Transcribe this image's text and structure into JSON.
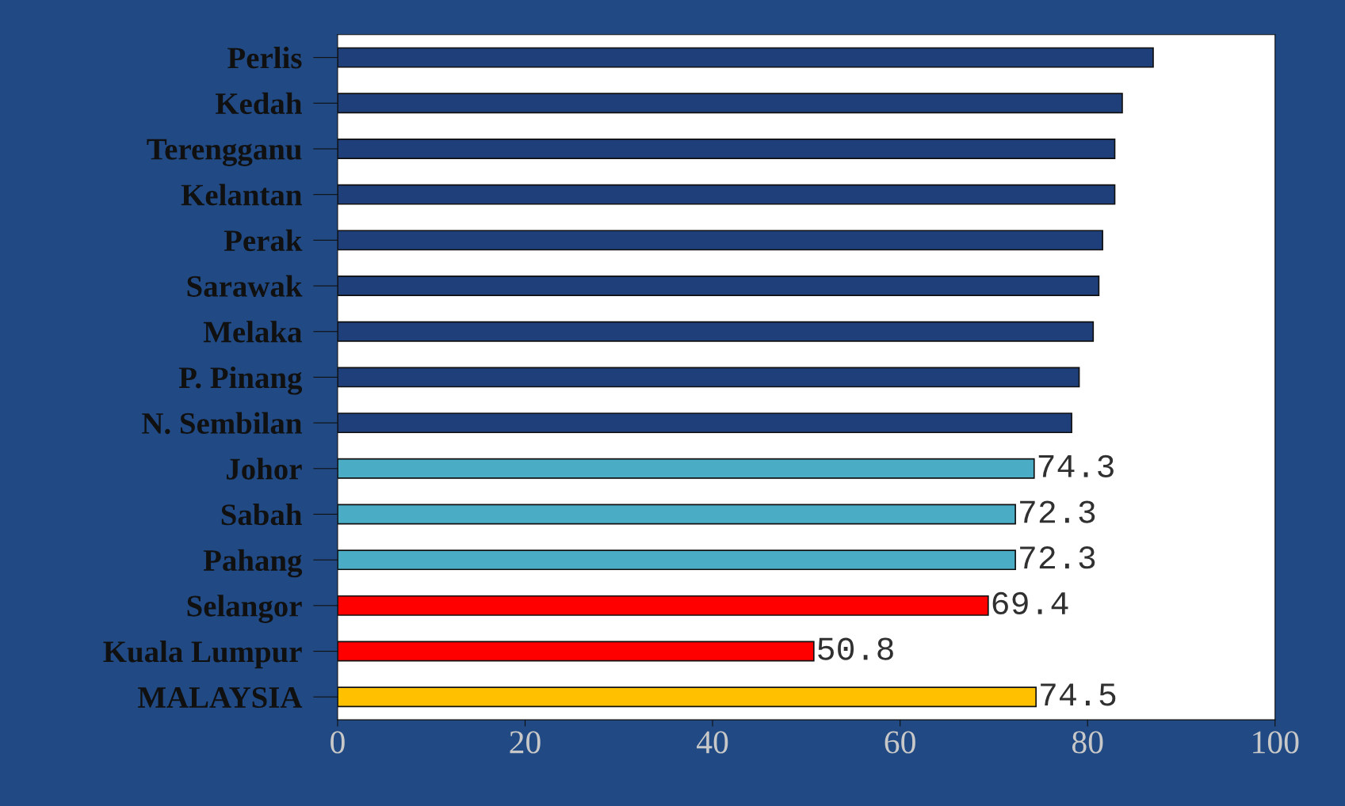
{
  "chart_data": {
    "type": "bar",
    "orientation": "horizontal",
    "categories": [
      "Perlis",
      "Kedah",
      "Terengganu",
      "Kelantan",
      "Perak",
      "Sarawak",
      "Melaka",
      "P. Pinang",
      "N. Sembilan",
      "Johor",
      "Sabah",
      "Pahang",
      "Selangor",
      "Kuala Lumpur",
      "MALAYSIA"
    ],
    "values": [
      87.0,
      83.7,
      82.9,
      82.9,
      81.6,
      81.2,
      80.6,
      79.1,
      78.3,
      74.3,
      72.3,
      72.3,
      69.4,
      50.8,
      74.5
    ],
    "colors": [
      "#1f3f7a",
      "#1f3f7a",
      "#1f3f7a",
      "#1f3f7a",
      "#1f3f7a",
      "#1f3f7a",
      "#1f3f7a",
      "#1f3f7a",
      "#1f3f7a",
      "#4bacc6",
      "#4bacc6",
      "#4bacc6",
      "#ff0000",
      "#ff0000",
      "#ffc000"
    ],
    "value_labels": [
      null,
      null,
      null,
      null,
      null,
      null,
      null,
      null,
      null,
      "74.3",
      "72.3",
      "72.3",
      "69.4",
      "50.8",
      "74.5"
    ],
    "xlim": [
      0,
      100
    ],
    "xticks": [
      0,
      20,
      40,
      60,
      80,
      100
    ],
    "grid": false,
    "legend": false
  }
}
